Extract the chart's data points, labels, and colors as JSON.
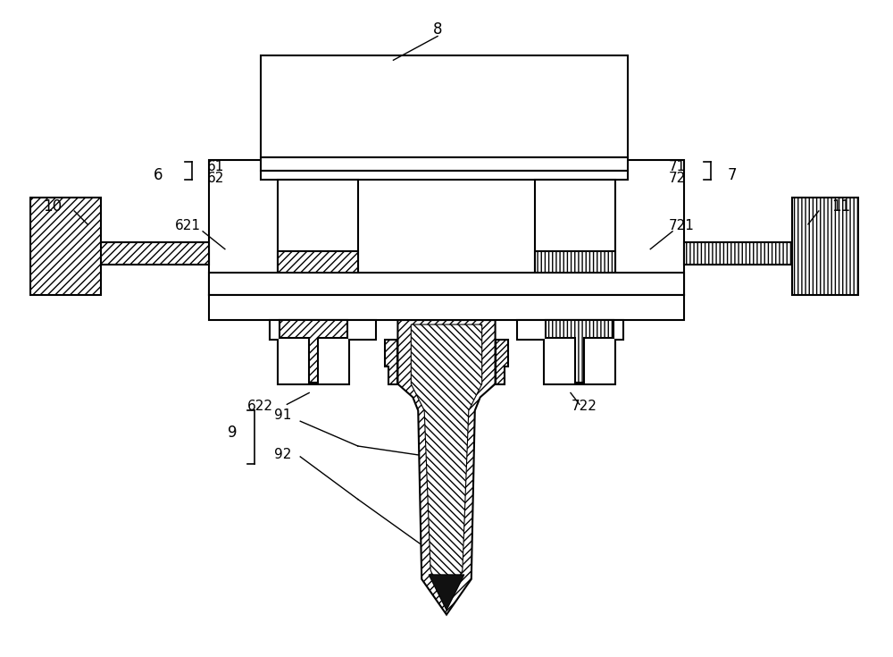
{
  "bg_color": "#ffffff",
  "line_color": "#000000",
  "fig_width": 10.0,
  "fig_height": 7.35,
  "dpi": 100
}
